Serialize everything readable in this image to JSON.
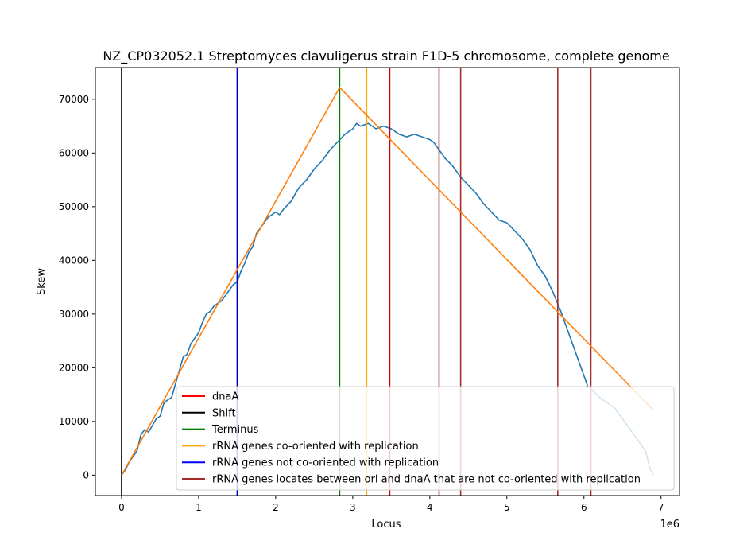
{
  "chart_data": {
    "type": "line",
    "title": "NZ_CP032052.1 Streptomyces clavuligerus strain F1D-5 chromosome, complete genome",
    "xlabel": "Locus",
    "ylabel": "Skew",
    "x_offset_label": "1e6",
    "xlim": [
      -0.34,
      7.24
    ],
    "ylim": [
      -3800,
      75900
    ],
    "x_ticks": [
      0,
      1,
      2,
      3,
      4,
      5,
      6,
      7
    ],
    "x_tick_labels": [
      "0",
      "1",
      "2",
      "3",
      "4",
      "5",
      "6",
      "7"
    ],
    "y_ticks": [
      0,
      10000,
      20000,
      30000,
      40000,
      50000,
      60000,
      70000
    ],
    "y_tick_labels": [
      "0",
      "10000",
      "20000",
      "30000",
      "40000",
      "50000",
      "60000",
      "70000"
    ],
    "grid": false,
    "legend_position": "bottom-right",
    "skew_series": {
      "color": "#1f77b4",
      "x": [
        0,
        0.05,
        0.1,
        0.2,
        0.25,
        0.3,
        0.35,
        0.45,
        0.5,
        0.55,
        0.6,
        0.65,
        0.7,
        0.75,
        0.8,
        0.85,
        0.9,
        1.0,
        1.05,
        1.1,
        1.15,
        1.2,
        1.3,
        1.35,
        1.4,
        1.45,
        1.5,
        1.55,
        1.6,
        1.65,
        1.7,
        1.75,
        1.8,
        1.85,
        1.9,
        1.95,
        2.0,
        2.05,
        2.1,
        2.2,
        2.3,
        2.4,
        2.5,
        2.6,
        2.7,
        2.8,
        2.9,
        3.0,
        3.05,
        3.1,
        3.2,
        3.3,
        3.4,
        3.5,
        3.6,
        3.7,
        3.8,
        3.9,
        4.0,
        4.05,
        4.1,
        4.2,
        4.3,
        4.4,
        4.5,
        4.6,
        4.7,
        4.8,
        4.9,
        5.0,
        5.1,
        5.2,
        5.3,
        5.4,
        5.5,
        5.6,
        5.7,
        5.8,
        5.9,
        6.0,
        6.05,
        6.1,
        6.2,
        6.3,
        6.4,
        6.5,
        6.6,
        6.7,
        6.8,
        6.85,
        6.9
      ],
      "y": [
        0,
        1000,
        2500,
        4500,
        7500,
        8500,
        8000,
        10500,
        11000,
        13500,
        14000,
        14500,
        17000,
        19500,
        22000,
        22500,
        24500,
        26500,
        28500,
        30000,
        30500,
        31500,
        32500,
        33500,
        34500,
        35500,
        36000,
        38000,
        39500,
        41500,
        42500,
        45000,
        46000,
        47000,
        48000,
        48500,
        49000,
        48500,
        49500,
        51000,
        53500,
        55000,
        57000,
        58500,
        60500,
        62000,
        63500,
        64500,
        65500,
        65000,
        65500,
        64500,
        65000,
        64500,
        63500,
        63000,
        63500,
        63000,
        62500,
        62000,
        61000,
        59000,
        57500,
        55500,
        54000,
        52500,
        50500,
        49000,
        47500,
        47000,
        45500,
        44000,
        42000,
        39000,
        37000,
        34000,
        30500,
        26500,
        22500,
        18500,
        16500,
        16000,
        14500,
        13500,
        12500,
        10500,
        8500,
        6500,
        4500,
        1500,
        0
      ]
    },
    "trend_series": {
      "color": "#ff7f0e",
      "x": [
        0,
        2.83,
        6.9
      ],
      "y": [
        0,
        72200,
        12100
      ]
    },
    "vlines": [
      {
        "x": 0,
        "color": "#000000"
      },
      {
        "x": 1.5,
        "color": "#0000cc"
      },
      {
        "x": 2.83,
        "color": "#008000"
      },
      {
        "x": 3.18,
        "color": "#ffa500"
      },
      {
        "x": 3.48,
        "color": "#cc0000"
      },
      {
        "x": 4.12,
        "color": "#a52a2a"
      },
      {
        "x": 4.4,
        "color": "#a52a2a"
      },
      {
        "x": 5.66,
        "color": "#a52a2a"
      },
      {
        "x": 6.09,
        "color": "#a52a2a"
      }
    ],
    "legend": [
      {
        "label": "dnaA",
        "color": "#ff0000"
      },
      {
        "label": "Shift",
        "color": "#000000"
      },
      {
        "label": "Terminus",
        "color": "#008000"
      },
      {
        "label": "rRNA genes co-oriented with replication",
        "color": "#ffa500"
      },
      {
        "label": "rRNA genes not co-oriented with replication",
        "color": "#0000ff"
      },
      {
        "label": "rRNA genes locates between ori and dnaA that are not co-oriented with replication",
        "color": "#a52a2a"
      }
    ]
  }
}
